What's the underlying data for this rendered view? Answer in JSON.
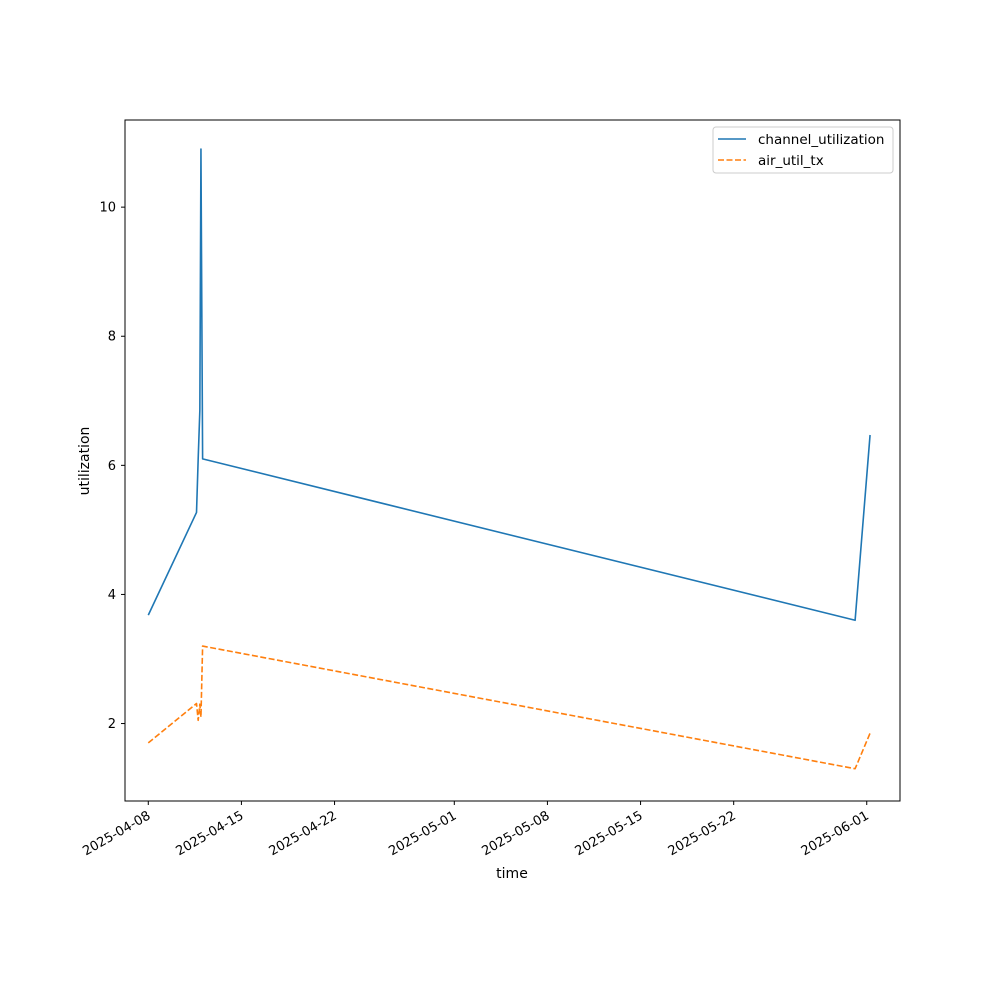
{
  "chart_data": {
    "type": "line",
    "title": "",
    "xlabel": "time",
    "ylabel": "utilization",
    "x_axis_type": "date",
    "xlim": [
      "2025-04-06T06:00",
      "2025-06-03T12:00"
    ],
    "ylim": [
      0.8,
      11.35
    ],
    "x_ticks": [
      "2025-04-08",
      "2025-04-15",
      "2025-04-22",
      "2025-05-01",
      "2025-05-08",
      "2025-05-15",
      "2025-05-22",
      "2025-06-01"
    ],
    "y_ticks": [
      2,
      4,
      6,
      8,
      10
    ],
    "grid": false,
    "legend_position": "top-right",
    "series": [
      {
        "name": "channel_utilization",
        "color": "#1f77b4",
        "line_style": "solid",
        "points": [
          {
            "x": "2025-04-08T00:00",
            "y": 3.68
          },
          {
            "x": "2025-04-11T15:00",
            "y": 5.27
          },
          {
            "x": "2025-04-11T18:00",
            "y": 6.1
          },
          {
            "x": "2025-04-11T21:00",
            "y": 6.85
          },
          {
            "x": "2025-04-11T23:00",
            "y": 10.9
          },
          {
            "x": "2025-04-12T02:00",
            "y": 6.1
          },
          {
            "x": "2025-05-31T03:00",
            "y": 3.6
          },
          {
            "x": "2025-06-01T06:00",
            "y": 6.47
          }
        ]
      },
      {
        "name": "air_util_tx",
        "color": "#ff7f0e",
        "line_style": "dashed",
        "points": [
          {
            "x": "2025-04-08T00:00",
            "y": 1.7
          },
          {
            "x": "2025-04-11T15:00",
            "y": 2.31
          },
          {
            "x": "2025-04-11T18:00",
            "y": 2.05
          },
          {
            "x": "2025-04-11T21:00",
            "y": 2.3
          },
          {
            "x": "2025-04-11T23:00",
            "y": 2.1
          },
          {
            "x": "2025-04-12T02:00",
            "y": 3.2
          },
          {
            "x": "2025-05-31T03:00",
            "y": 1.3
          },
          {
            "x": "2025-06-01T06:00",
            "y": 1.85
          }
        ]
      }
    ]
  }
}
